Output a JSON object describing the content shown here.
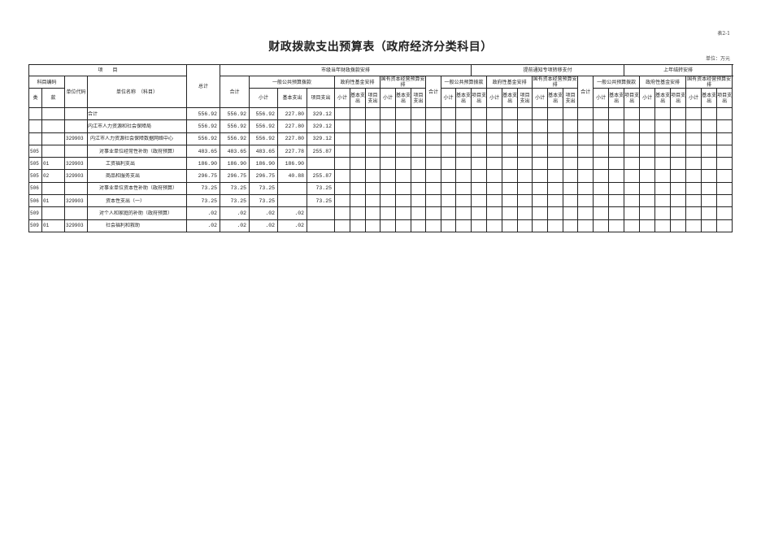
{
  "title": "财政拨款支出预算表（政府经济分类科目）",
  "table_no": "表2-1",
  "unit": "单位：万元",
  "header": {
    "item": "项　　目",
    "total": "总计",
    "section1": "市级当年财政拨款安排",
    "section2": "提前通知专项转移支付",
    "section3": "上年结转安排",
    "subject_code": "科目编码",
    "unit_code": "单位代码",
    "unit_name": "单位名称　（科目）",
    "lei": "类",
    "kuan": "款",
    "heji": "合计",
    "general": "一般公共预算拨款",
    "fund": "政府性基金安排",
    "state_capital": "国有资本经营预算安排",
    "xiaoji": "小计",
    "basic": "基本支出",
    "project": "项目支出"
  },
  "rows": [
    {
      "lei": "",
      "kuan": "",
      "code": "",
      "name": "合计",
      "indent": 0,
      "total": "556.92",
      "heji": "556.92",
      "xiaoji": "556.92",
      "basic": "227.80",
      "project": "329.12"
    },
    {
      "lei": "",
      "kuan": "",
      "code": "",
      "name": "内江市人力资源和社会保障局",
      "indent": 0,
      "total": "556.92",
      "heji": "556.92",
      "xiaoji": "556.92",
      "basic": "227.80",
      "project": "329.12"
    },
    {
      "lei": "",
      "kuan": "",
      "code": "329903",
      "name": "内江市人力资源社会保障数据网络中心",
      "indent": 1,
      "total": "556.92",
      "heji": "556.92",
      "xiaoji": "556.92",
      "basic": "227.80",
      "project": "329.12"
    },
    {
      "lei": "505",
      "kuan": "",
      "code": "",
      "name": "对事业单位经常性补助（政府预算）",
      "indent": 2,
      "total": "483.65",
      "heji": "483.65",
      "xiaoji": "483.65",
      "basic": "227.78",
      "project": "255.87"
    },
    {
      "lei": "505",
      "kuan": "01",
      "code": "329903",
      "name": "工资福利支出",
      "indent": 3,
      "total": "186.90",
      "heji": "186.90",
      "xiaoji": "186.90",
      "basic": "186.90",
      "project": ""
    },
    {
      "lei": "505",
      "kuan": "02",
      "code": "329903",
      "name": "商品和服务支出",
      "indent": 3,
      "total": "296.75",
      "heji": "296.75",
      "xiaoji": "296.75",
      "basic": "40.88",
      "project": "255.87"
    },
    {
      "lei": "506",
      "kuan": "",
      "code": "",
      "name": "对事业单位资本性补助（政府预算）",
      "indent": 2,
      "total": "73.25",
      "heji": "73.25",
      "xiaoji": "73.25",
      "basic": "",
      "project": "73.25"
    },
    {
      "lei": "506",
      "kuan": "01",
      "code": "329903",
      "name": "资本性支出（一）",
      "indent": 3,
      "total": "73.25",
      "heji": "73.25",
      "xiaoji": "73.25",
      "basic": "",
      "project": "73.25"
    },
    {
      "lei": "509",
      "kuan": "",
      "code": "",
      "name": "对个人和家庭的补助（政府预算）",
      "indent": 2,
      "total": ".02",
      "heji": ".02",
      "xiaoji": ".02",
      "basic": ".02",
      "project": ""
    },
    {
      "lei": "509",
      "kuan": "01",
      "code": "329903",
      "name": "社会福利和救助",
      "indent": 3,
      "total": ".02",
      "heji": ".02",
      "xiaoji": ".02",
      "basic": ".02",
      "project": ""
    }
  ]
}
